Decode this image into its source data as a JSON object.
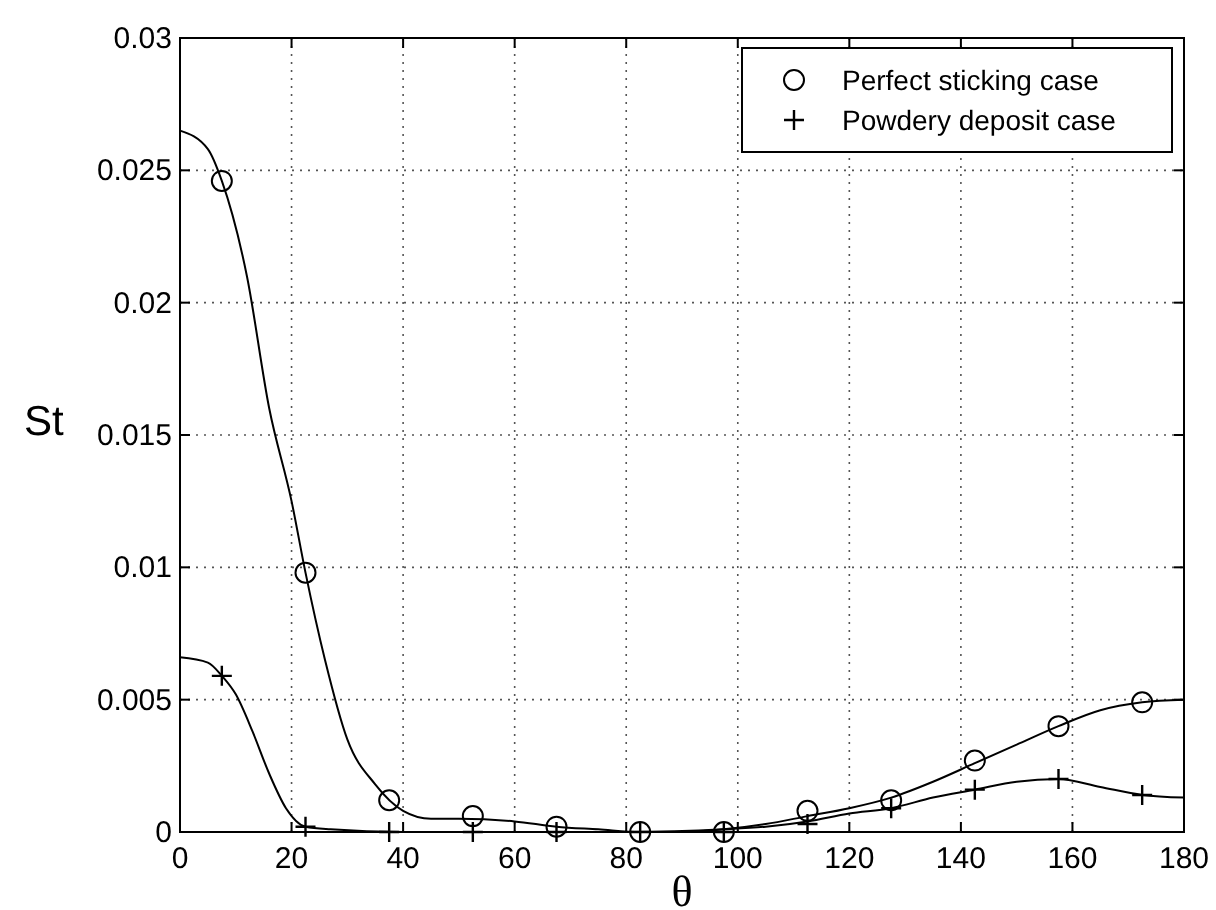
{
  "chart_data": {
    "type": "line",
    "xlabel": "θ",
    "ylabel": "St",
    "xlim": [
      0,
      180
    ],
    "ylim": [
      0,
      0.03
    ],
    "xticks": [
      0,
      20,
      40,
      60,
      80,
      100,
      120,
      140,
      160,
      180
    ],
    "yticks": [
      0,
      0.005,
      0.01,
      0.015,
      0.02,
      0.025,
      0.03
    ],
    "grid": true,
    "legend": "top right",
    "series": [
      {
        "color": "#000000",
        "marker": "none",
        "line_style": "solid",
        "x": [
          0,
          5,
          7.5,
          12,
          16,
          20,
          22.5,
          26,
          30,
          35,
          40,
          45,
          50,
          60,
          67.5,
          75,
          82.5,
          90,
          97.5,
          105,
          112.5,
          120,
          127.5,
          135,
          142.5,
          150,
          157.5,
          165,
          172.5,
          180
        ],
        "values": [
          0.0265,
          0.0258,
          0.0246,
          0.021,
          0.016,
          0.0125,
          0.0098,
          0.0065,
          0.0035,
          0.0018,
          0.0008,
          0.0005,
          0.0005,
          0.0004,
          0.0002,
          0.0001,
          0,
          0,
          0.0001,
          0.0003,
          0.0006,
          0.0009,
          0.0013,
          0.0019,
          0.0026,
          0.0033,
          0.004,
          0.0046,
          0.0049,
          0.005
        ]
      },
      {
        "color": "#000000",
        "marker": "none",
        "line_style": "solid",
        "x": [
          0,
          5,
          7.5,
          10,
          13,
          16,
          19,
          22.5,
          27,
          40,
          60,
          80,
          97.5,
          105,
          112.5,
          120,
          127.5,
          135,
          142.5,
          150,
          157.5,
          165,
          172.5,
          180
        ],
        "values": [
          0.0066,
          0.0064,
          0.0059,
          0.0052,
          0.0038,
          0.0022,
          0.0009,
          0.0002,
          0.0001,
          0,
          0,
          0,
          0.0001,
          0.0002,
          0.0004,
          0.0007,
          0.0009,
          0.0013,
          0.0016,
          0.0019,
          0.002,
          0.0017,
          0.0014,
          0.0013
        ]
      },
      {
        "type": "scatter",
        "name": "Perfect sticking case",
        "color": "#000000",
        "marker": "circle",
        "x": [
          7.5,
          22.5,
          37.5,
          52.5,
          67.5,
          82.5,
          97.5,
          112.5,
          127.5,
          142.5,
          157.5,
          172.5
        ],
        "values": [
          0.0246,
          0.0098,
          0.0012,
          0.0006,
          0.0002,
          0,
          0,
          0.0008,
          0.0012,
          0.0027,
          0.004,
          0.0049
        ]
      },
      {
        "type": "scatter",
        "name": "Powdery deposit case",
        "color": "#000000",
        "marker": "cross",
        "x": [
          7.5,
          22.5,
          37.5,
          52.5,
          67.5,
          82.5,
          97.5,
          112.5,
          127.5,
          142.5,
          157.5,
          172.5
        ],
        "values": [
          0.0059,
          0.0002,
          0,
          0,
          0,
          0,
          0,
          0.0003,
          0.0009,
          0.0016,
          0.002,
          0.0014
        ]
      }
    ]
  }
}
